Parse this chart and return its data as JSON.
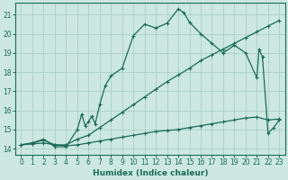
{
  "title": "",
  "xlabel": "Humidex (Indice chaleur)",
  "ylabel": "",
  "bg_color": "#cce8e0",
  "grid_color": "#aad0c8",
  "line_color": "#1a6b5a",
  "xlim": [
    -0.5,
    23.5
  ],
  "ylim": [
    13.7,
    21.6
  ],
  "xticks": [
    0,
    1,
    2,
    3,
    4,
    5,
    6,
    7,
    8,
    9,
    10,
    11,
    12,
    13,
    14,
    15,
    16,
    17,
    18,
    19,
    20,
    21,
    22,
    23
  ],
  "yticks": [
    14,
    15,
    16,
    17,
    18,
    19,
    20,
    21
  ],
  "line_curve_x": [
    0,
    1,
    2,
    3,
    4,
    5,
    5.4,
    5.7,
    6,
    6.3,
    6.6,
    7,
    7.5,
    8,
    9,
    10,
    11,
    12,
    13,
    14,
    14.5,
    15,
    16,
    17,
    18,
    19,
    20,
    21,
    21.2,
    21.5,
    22,
    22.5,
    23
  ],
  "line_curve_y": [
    14.2,
    14.3,
    14.5,
    14.1,
    14.1,
    15.0,
    15.8,
    15.2,
    15.4,
    15.7,
    15.3,
    16.3,
    17.3,
    17.8,
    18.2,
    19.9,
    20.5,
    20.3,
    20.55,
    21.3,
    21.1,
    20.6,
    20.0,
    19.5,
    19.0,
    19.4,
    19.0,
    17.7,
    19.2,
    18.8,
    14.8,
    15.1,
    15.5
  ],
  "line_mid_x": [
    0,
    1,
    2,
    3,
    4,
    5,
    6,
    7,
    8,
    9,
    10,
    11,
    12,
    13,
    14,
    15,
    16,
    17,
    18,
    19,
    20,
    21,
    22,
    23
  ],
  "line_mid_y": [
    14.2,
    14.3,
    14.45,
    14.2,
    14.2,
    14.5,
    14.7,
    15.1,
    15.5,
    15.9,
    16.3,
    16.7,
    17.1,
    17.5,
    17.85,
    18.2,
    18.6,
    18.9,
    19.2,
    19.5,
    19.8,
    20.1,
    20.4,
    20.7
  ],
  "line_flat_x": [
    0,
    1,
    2,
    3,
    4,
    5,
    6,
    7,
    8,
    9,
    10,
    11,
    12,
    13,
    14,
    15,
    16,
    17,
    18,
    19,
    20,
    21,
    22,
    23
  ],
  "line_flat_y": [
    14.2,
    14.25,
    14.3,
    14.2,
    14.15,
    14.2,
    14.3,
    14.4,
    14.5,
    14.6,
    14.7,
    14.8,
    14.9,
    14.95,
    15.0,
    15.1,
    15.2,
    15.3,
    15.4,
    15.5,
    15.6,
    15.65,
    15.5,
    15.55
  ]
}
